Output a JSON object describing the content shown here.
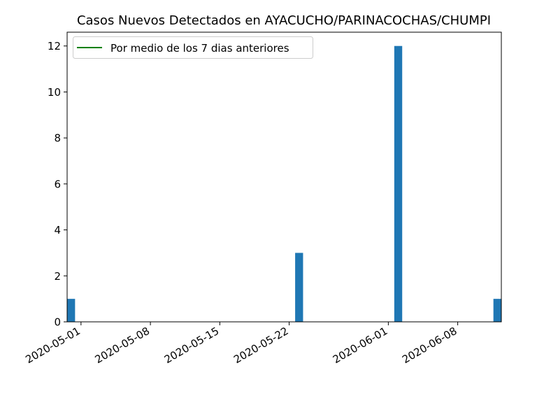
{
  "chart_data": {
    "type": "bar",
    "title": "Casos Nuevos Detectados en AYACUCHO/PARINACOCHAS/CHUMPI",
    "xlabel": "",
    "ylabel": "",
    "x_tick_labels": [
      "2020-05-01",
      "2020-05-08",
      "2020-05-15",
      "2020-05-22",
      "2020-06-01",
      "2020-06-08"
    ],
    "xlim": [
      "2020-04-30",
      "2020-06-12"
    ],
    "ylim": [
      0,
      12.6
    ],
    "y_ticks": [
      0,
      2,
      4,
      6,
      8,
      10,
      12
    ],
    "grid": false,
    "legend_position": "top-left",
    "series": [
      {
        "type": "bar",
        "color": "#1f77b4",
        "x": [
          "2020-04-30",
          "2020-05-23",
          "2020-06-02",
          "2020-06-12"
        ],
        "values": [
          1,
          3,
          12,
          1
        ]
      },
      {
        "type": "line",
        "name": "Por medio de los 7 dias anteriores",
        "color": "#008000",
        "x": [],
        "values": []
      }
    ]
  }
}
